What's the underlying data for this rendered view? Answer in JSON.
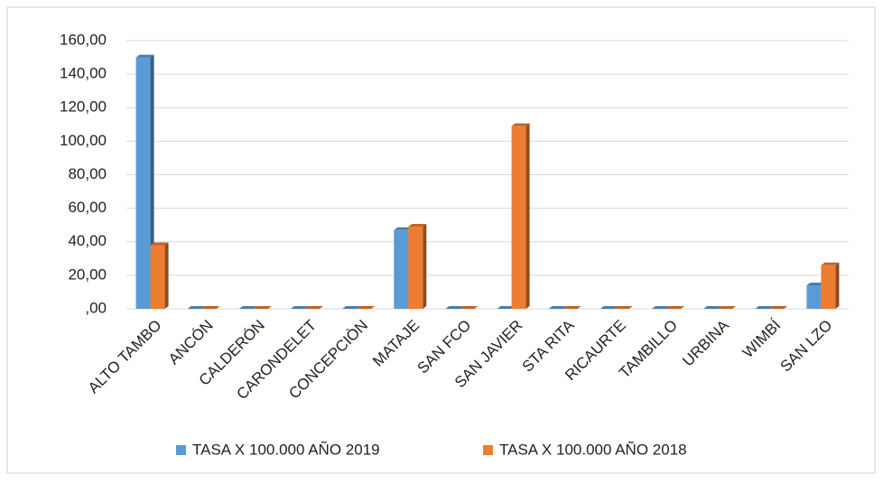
{
  "chart_data": {
    "type": "bar",
    "categories": [
      "ALTO TAMBO",
      "ANCÓN",
      "CALDERÓN",
      "CARONDELET",
      "CONCEPCIÒN",
      "MATAJE",
      "SAN FCO",
      "SAN JAVIER",
      "STA RITA",
      "RICAURTE",
      "TAMBILLO",
      "URBINA",
      "WIMBÍ",
      "SAN LZO"
    ],
    "series": [
      {
        "name": "TASA X 100.000 AÑO 2019",
        "color": "#5b9bd5",
        "values": [
          150,
          0,
          0,
          0,
          0,
          47,
          0,
          0,
          0,
          0,
          0,
          0,
          0,
          14
        ]
      },
      {
        "name": "TASA X 100.000 AÑO 2018",
        "color": "#ed7d31",
        "values": [
          38,
          0,
          0,
          0,
          0,
          49,
          0,
          109,
          0,
          0,
          0,
          0,
          0,
          26
        ]
      }
    ],
    "ylim": [
      0,
      160
    ],
    "yticks": [
      {
        "value": 0,
        "label": ",00"
      },
      {
        "value": 20,
        "label": "20,00"
      },
      {
        "value": 40,
        "label": "40,00"
      },
      {
        "value": 60,
        "label": "60,00"
      },
      {
        "value": 80,
        "label": "80,00"
      },
      {
        "value": 100,
        "label": "100,00"
      },
      {
        "value": 120,
        "label": "120,00"
      },
      {
        "value": 140,
        "label": "140,00"
      },
      {
        "value": 160,
        "label": "160,00"
      }
    ],
    "grid": true,
    "legend": "bottom"
  }
}
